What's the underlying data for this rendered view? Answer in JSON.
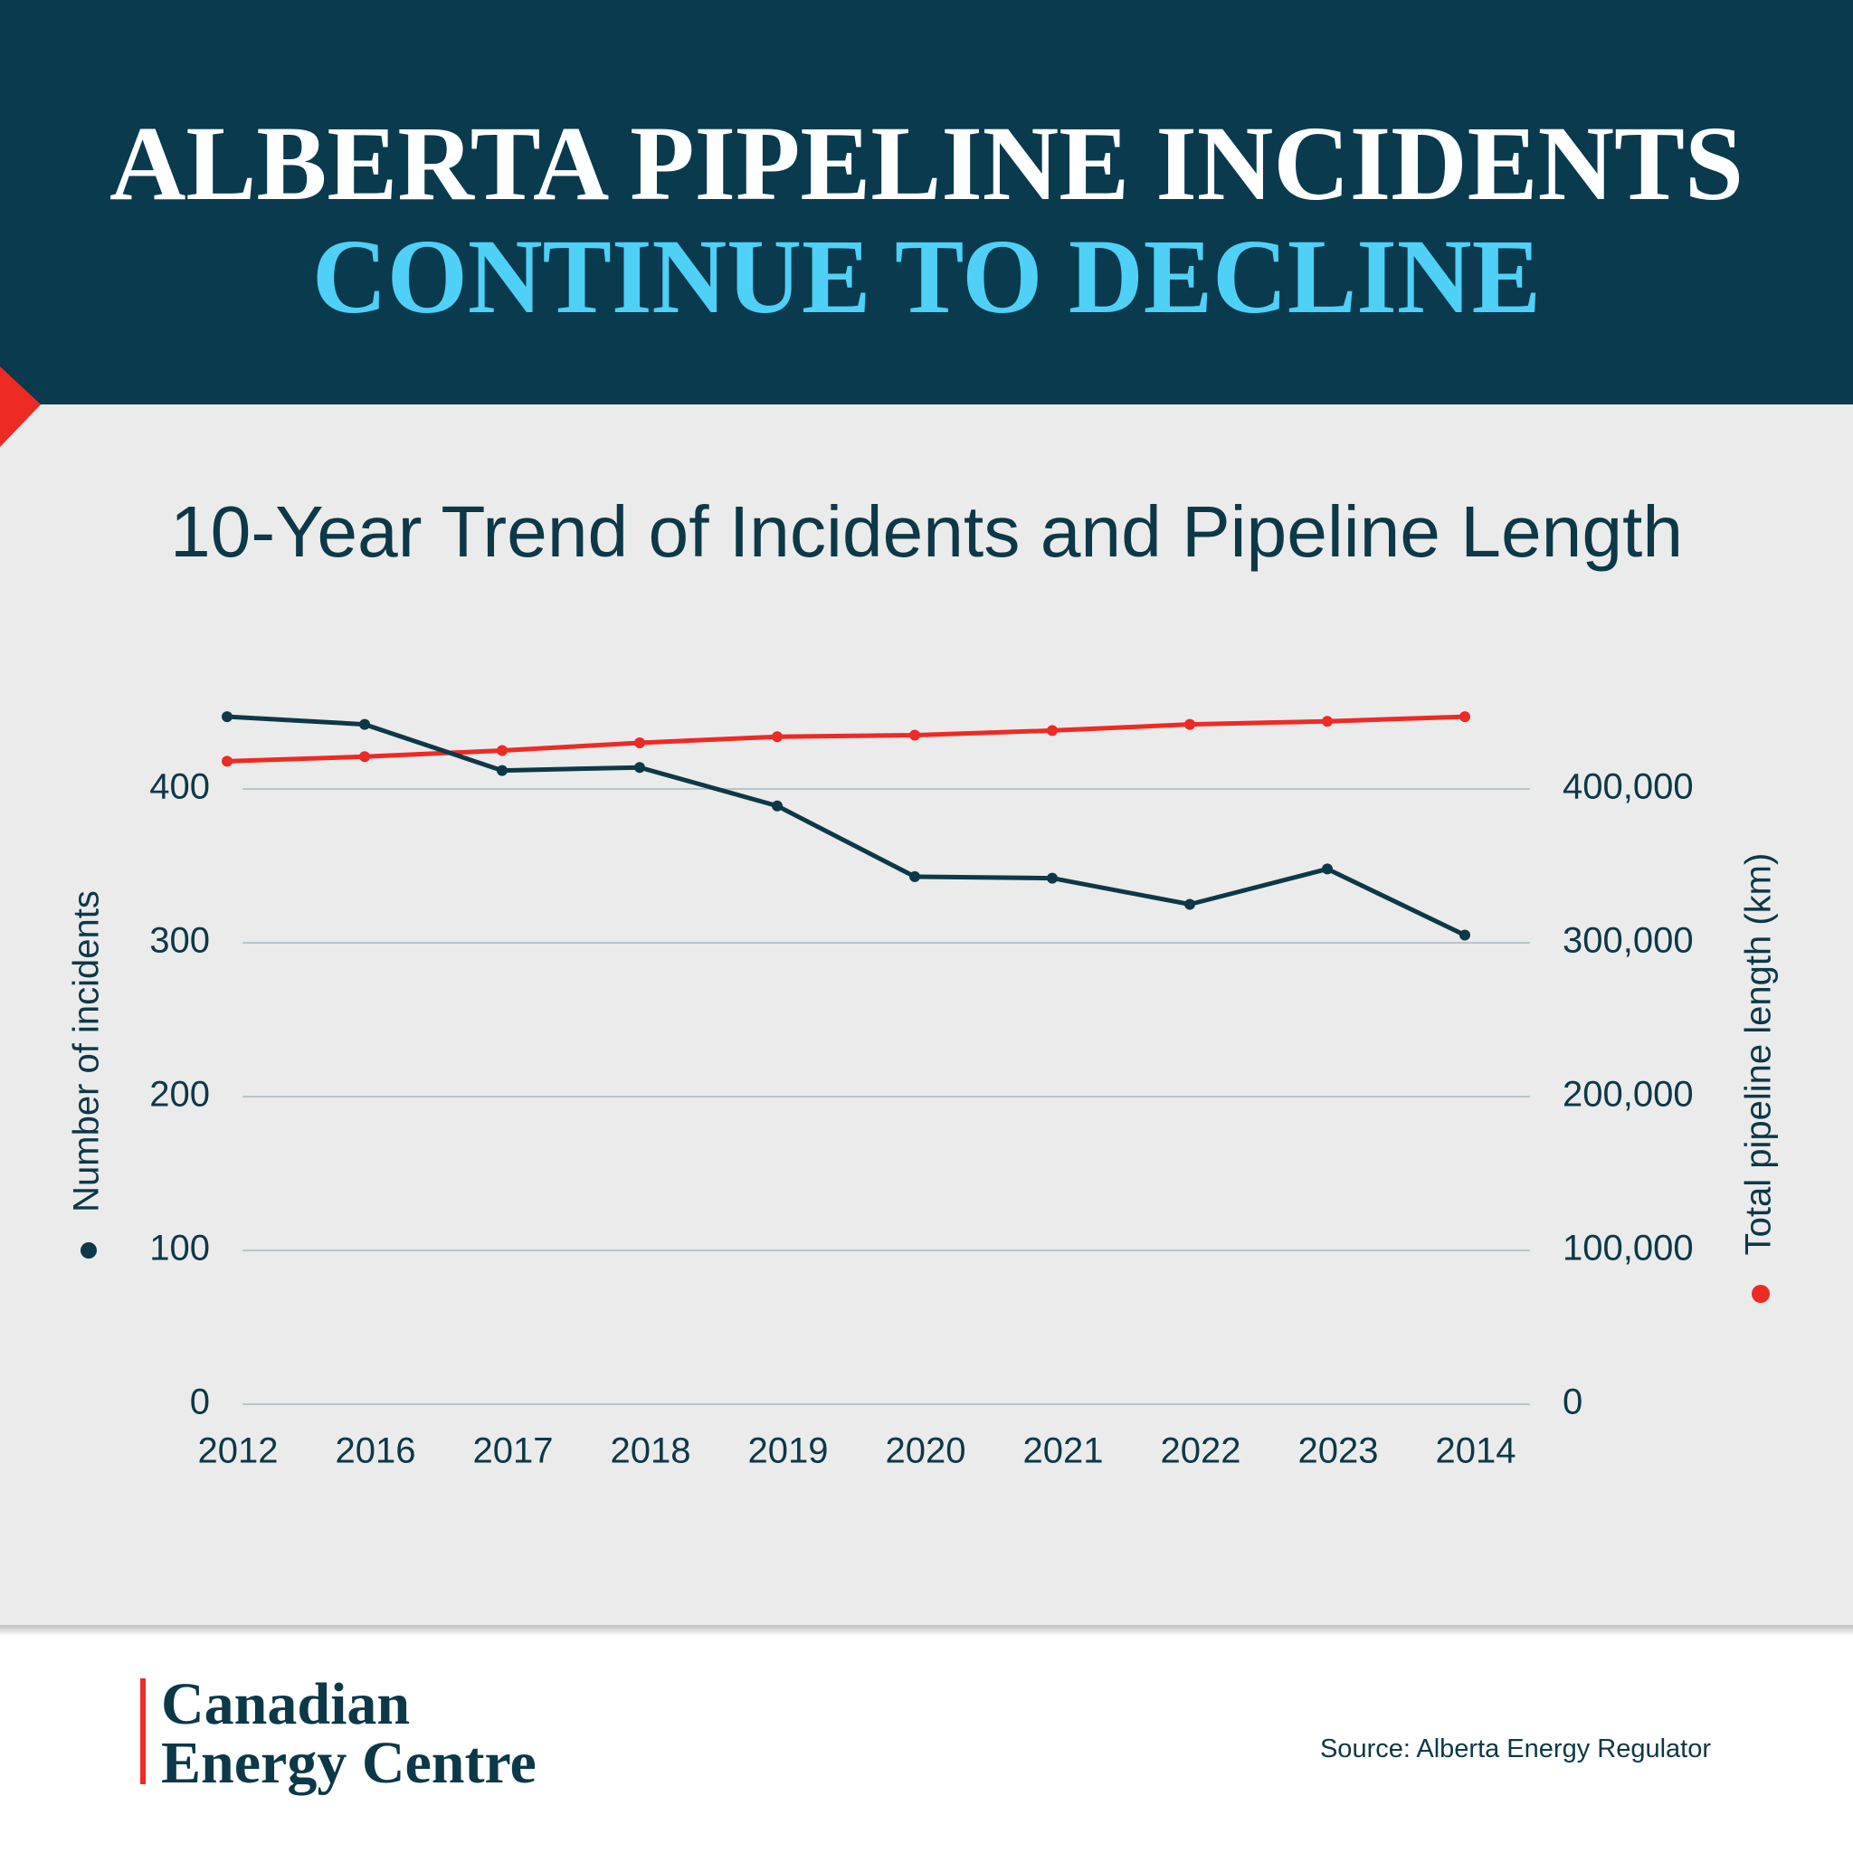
{
  "header": {
    "title_line1": "ALBERTA PIPELINE INCIDENTS",
    "title_line2": "CONTINUE TO DECLINE"
  },
  "chart_data": {
    "type": "line",
    "title": "10-Year Trend of Incidents and Pipeline Length",
    "categories": [
      "2012",
      "2016",
      "2017",
      "2018",
      "2019",
      "2020",
      "2021",
      "2022",
      "2023",
      "2014"
    ],
    "series": [
      {
        "name": "Number of incidents",
        "color": "#0d3848",
        "values": [
          447,
          442,
          412,
          414,
          389,
          343,
          342,
          325,
          348,
          305
        ]
      },
      {
        "name": "Total pipeline length (km)",
        "color": "#ee2a24",
        "axis": "y2",
        "values": [
          418000,
          421000,
          425000,
          430000,
          434000,
          435000,
          438000,
          442000,
          444000,
          447000
        ]
      }
    ],
    "ylim": [
      0,
      450
    ],
    "yticks": [
      0,
      100,
      200,
      300,
      400
    ],
    "y2lim": [
      0,
      450000
    ],
    "y2ticks": [
      0,
      {
        "value": 100000,
        "label": "100,000"
      },
      {
        "value": 200000,
        "label": "200,000"
      },
      {
        "value": 300000,
        "label": "300,000"
      },
      {
        "value": 400000,
        "label": "400,000"
      }
    ],
    "grid": true
  },
  "footer": {
    "logo": [
      "Canadian",
      "Energy Centre"
    ],
    "source": "Source: Alberta Energy Regulator"
  }
}
